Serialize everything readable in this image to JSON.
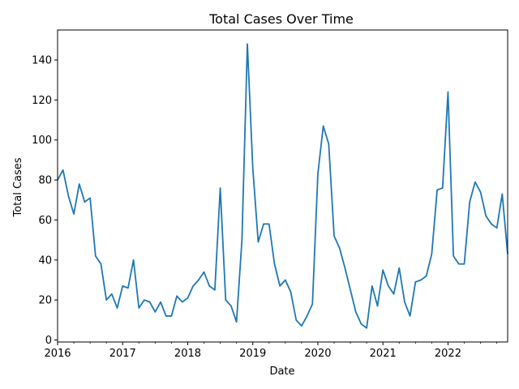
{
  "chart_data": {
    "type": "line",
    "title": "Total Cases Over Time",
    "xlabel": "Date",
    "ylabel": "Total Cases",
    "x_range": [
      "2016-01",
      "2022-12"
    ],
    "ylim": [
      -1,
      155
    ],
    "x_ticks": [
      {
        "date": "2016-01",
        "label": "2016"
      },
      {
        "date": "2017-01",
        "label": "2017"
      },
      {
        "date": "2018-01",
        "label": "2018"
      },
      {
        "date": "2019-01",
        "label": "2019"
      },
      {
        "date": "2020-01",
        "label": "2020"
      },
      {
        "date": "2021-01",
        "label": "2021"
      },
      {
        "date": "2022-01",
        "label": "2022"
      }
    ],
    "y_ticks": [
      0,
      20,
      40,
      60,
      80,
      100,
      120,
      140
    ],
    "grid": false,
    "line_color": "#1f77b4",
    "series": [
      {
        "x": [
          "2016-01",
          "2016-02",
          "2016-03",
          "2016-04",
          "2016-05",
          "2016-06",
          "2016-07",
          "2016-08",
          "2016-09",
          "2016-10",
          "2016-11",
          "2016-12",
          "2017-01",
          "2017-02",
          "2017-03",
          "2017-04",
          "2017-05",
          "2017-06",
          "2017-07",
          "2017-08",
          "2017-09",
          "2017-10",
          "2017-11",
          "2017-12",
          "2018-01",
          "2018-02",
          "2018-03",
          "2018-04",
          "2018-05",
          "2018-06",
          "2018-07",
          "2018-08",
          "2018-09",
          "2018-10",
          "2018-11",
          "2018-12",
          "2019-01",
          "2019-02",
          "2019-03",
          "2019-04",
          "2019-05",
          "2019-06",
          "2019-07",
          "2019-08",
          "2019-09",
          "2019-10",
          "2019-11",
          "2019-12",
          "2020-01",
          "2020-02",
          "2020-03",
          "2020-04",
          "2020-05",
          "2020-06",
          "2020-07",
          "2020-08",
          "2020-09",
          "2020-10",
          "2020-11",
          "2020-12",
          "2021-01",
          "2021-02",
          "2021-03",
          "2021-04",
          "2021-05",
          "2021-06",
          "2021-07",
          "2021-08",
          "2021-09",
          "2021-10",
          "2021-11",
          "2021-12",
          "2022-01",
          "2022-02",
          "2022-03",
          "2022-04",
          "2022-05",
          "2022-06",
          "2022-07",
          "2022-08",
          "2022-09",
          "2022-10",
          "2022-11",
          "2022-12"
        ],
        "values": [
          80,
          85,
          72,
          63,
          78,
          69,
          71,
          42,
          38,
          20,
          23,
          16,
          27,
          26,
          40,
          16,
          20,
          19,
          14,
          19,
          12,
          12,
          22,
          19,
          21,
          27,
          30,
          34,
          27,
          25,
          76,
          20,
          17,
          9,
          50,
          148,
          86,
          49,
          58,
          58,
          38,
          27,
          30,
          24,
          10,
          7,
          12,
          18,
          83,
          107,
          98,
          52,
          46,
          36,
          25,
          14,
          8,
          6,
          27,
          17,
          35,
          27,
          23,
          36,
          19,
          12,
          29,
          30,
          32,
          43,
          75,
          76,
          124,
          42,
          38,
          38,
          69,
          79,
          74,
          62,
          58,
          56,
          73,
          43
        ]
      }
    ]
  }
}
